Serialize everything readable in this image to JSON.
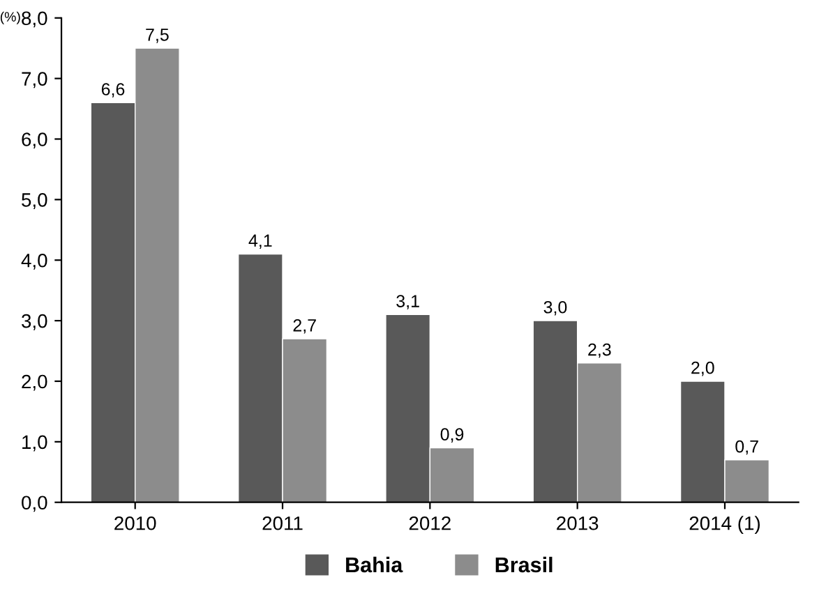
{
  "chart_data": {
    "type": "bar",
    "ylabel": "(%)",
    "categories": [
      "2010",
      "2011",
      "2012",
      "2013",
      "2014 (1)"
    ],
    "series": [
      {
        "name": "Bahia",
        "color": "#595959",
        "values": [
          6.6,
          4.1,
          3.1,
          3.0,
          2.0
        ],
        "value_labels": [
          "6,6",
          "4,1",
          "3,1",
          "3,0",
          "2,0"
        ]
      },
      {
        "name": "Brasil",
        "color": "#8c8c8c",
        "values": [
          7.5,
          2.7,
          0.9,
          2.3,
          0.7
        ],
        "value_labels": [
          "7,5",
          "2,7",
          "0,9",
          "2,3",
          "0,7"
        ]
      }
    ],
    "ylim": [
      0,
      8
    ],
    "yticks": [
      {
        "value": 0,
        "label": "0,0"
      },
      {
        "value": 1,
        "label": "1,0"
      },
      {
        "value": 2,
        "label": "2,0"
      },
      {
        "value": 3,
        "label": "3,0"
      },
      {
        "value": 4,
        "label": "4,0"
      },
      {
        "value": 5,
        "label": "5,0"
      },
      {
        "value": 6,
        "label": "6,0"
      },
      {
        "value": 7,
        "label": "7,0"
      },
      {
        "value": 8,
        "label": "8,0"
      }
    ],
    "grid": false,
    "legend": "bottom"
  }
}
